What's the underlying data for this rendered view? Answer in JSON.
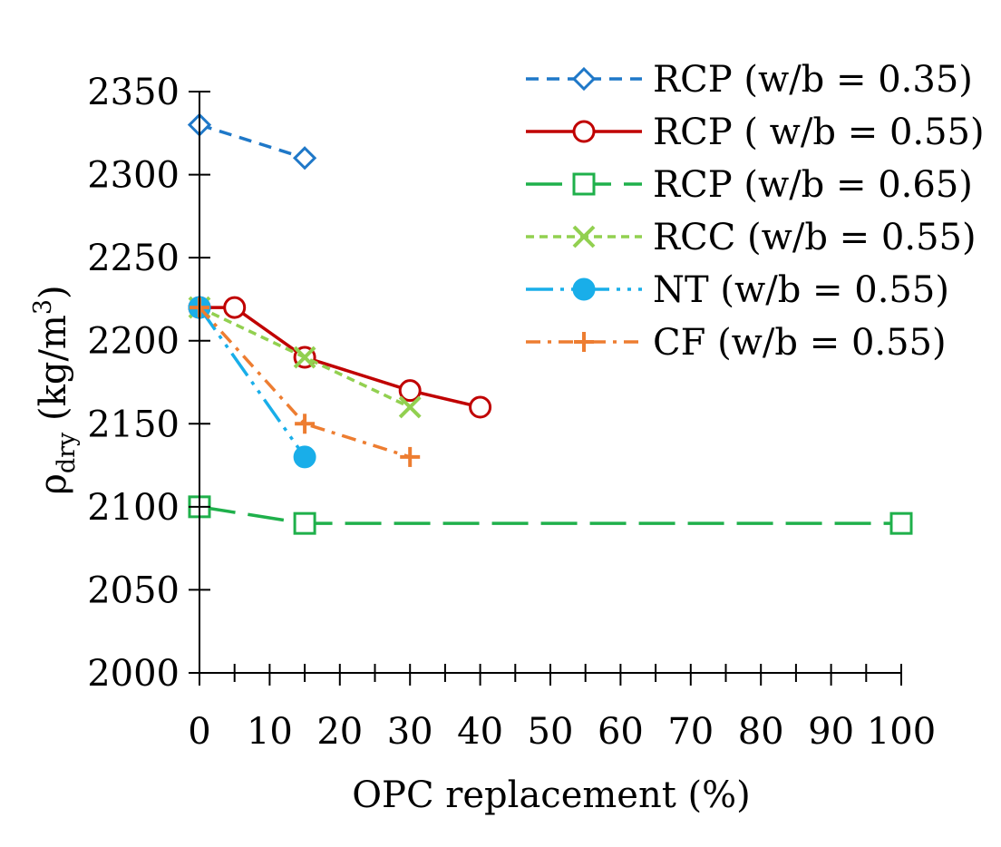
{
  "chart_data": {
    "type": "line",
    "xlabel": "OPC replacement (%)",
    "ylabel_main": "ρ",
    "ylabel_sub": "dry",
    "ylabel_unit_pre": " (kg/m",
    "ylabel_unit_sup": "3",
    "ylabel_unit_post": ")",
    "xlim": [
      0,
      100
    ],
    "ylim": [
      2000,
      2350
    ],
    "xticks": [
      0,
      10,
      20,
      30,
      40,
      50,
      60,
      70,
      80,
      90,
      100
    ],
    "yticks": [
      2000,
      2050,
      2100,
      2150,
      2200,
      2250,
      2300,
      2350
    ],
    "x_minor_step": 5,
    "legend_position": "top-right",
    "series": [
      {
        "name": "RCP (w/b = 0.35)",
        "color": "#1f78c8",
        "dash": "dashed",
        "marker": "diamond",
        "x": [
          0,
          15
        ],
        "y": [
          2330,
          2310
        ]
      },
      {
        "name": "RCP ( w/b = 0.55)",
        "color": "#c00000",
        "dash": "solid",
        "marker": "circle",
        "x": [
          0,
          5,
          15,
          30,
          40
        ],
        "y": [
          2220,
          2220,
          2190,
          2170,
          2160
        ]
      },
      {
        "name": "RCP (w/b = 0.65)",
        "color": "#1fb04b",
        "dash": "longdash",
        "marker": "square",
        "x": [
          0,
          15,
          100
        ],
        "y": [
          2100,
          2090,
          2090
        ]
      },
      {
        "name": "RCC (w/b = 0.55)",
        "color": "#92d050",
        "dash": "dotted",
        "marker": "x",
        "x": [
          0,
          15,
          30
        ],
        "y": [
          2220,
          2190,
          2160
        ]
      },
      {
        "name": "NT (w/b = 0.55)",
        "color": "#19aee9",
        "dash": "dashdotdot",
        "marker": "filledcircle",
        "x": [
          0,
          15
        ],
        "y": [
          2220,
          2130
        ]
      },
      {
        "name": "CF (w/b = 0.55)",
        "color": "#ed7d31",
        "dash": "dashdot",
        "marker": "plus",
        "x": [
          0,
          15,
          30
        ],
        "y": [
          2220,
          2150,
          2130
        ]
      }
    ]
  }
}
